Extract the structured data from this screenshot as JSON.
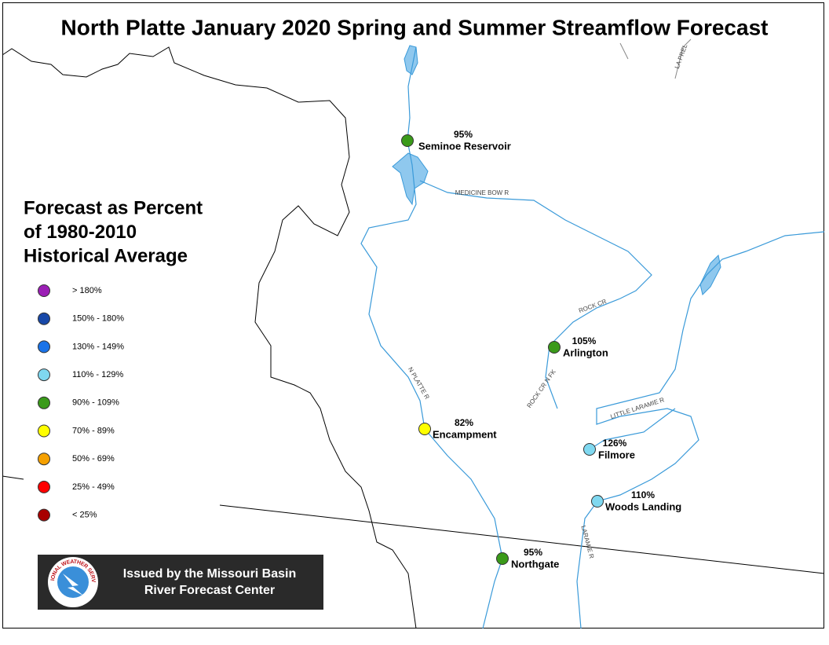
{
  "title": "North Platte January 2020 Spring and Summer Streamflow Forecast",
  "legend": {
    "title_lines": [
      "Forecast as Percent",
      "of 1980-2010",
      "Historical Average"
    ],
    "items": [
      {
        "label": "> 180%",
        "color": "#9b1fb5"
      },
      {
        "label": "150% - 180%",
        "color": "#1848a8"
      },
      {
        "label": "130% - 149%",
        "color": "#1a73e8"
      },
      {
        "label": "110% - 129%",
        "color": "#7fd8f0"
      },
      {
        "label": "90% - 109%",
        "color": "#3a9a1a"
      },
      {
        "label": "70% - 89%",
        "color": "#ffff00"
      },
      {
        "label": "50% - 69%",
        "color": "#f5a000"
      },
      {
        "label": "25% - 49%",
        "color": "#ff0000"
      },
      {
        "label": "< 25%",
        "color": "#a80000"
      }
    ]
  },
  "stations": [
    {
      "name": "Seminoe Reservoir",
      "percent": "95%",
      "color": "#3a9a1a"
    },
    {
      "name": "Arlington",
      "percent": "105%",
      "color": "#3a9a1a"
    },
    {
      "name": "Encampment",
      "percent": "82%",
      "color": "#ffff00"
    },
    {
      "name": "Filmore",
      "percent": "126%",
      "color": "#7fd8f0"
    },
    {
      "name": "Woods Landing",
      "percent": "110%",
      "color": "#7fd8f0"
    },
    {
      "name": "Northgate",
      "percent": "95%",
      "color": "#3a9a1a"
    }
  ],
  "river_labels": [
    "MEDICINE BOW R",
    "ROCK CR",
    "ROCK CR N FK",
    "N PLATTE R",
    "LITTLE LARAMIE R",
    "LARAMIE R",
    "LA PREL"
  ],
  "banner": {
    "lines": [
      "Issued by the Missouri Basin",
      "River Forecast Center"
    ],
    "logo_text": "NATIONAL WEATHER SERVICE"
  }
}
